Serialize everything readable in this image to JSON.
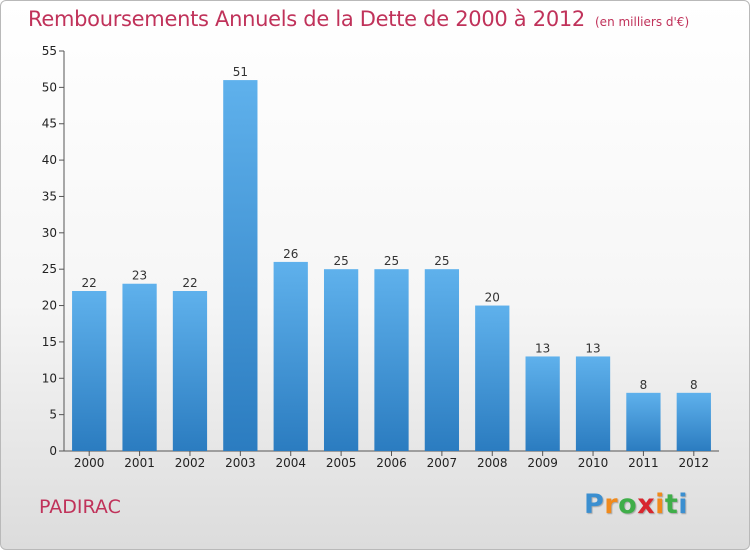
{
  "chart_data": {
    "type": "bar",
    "title": "Remboursements Annuels de la Dette de 2000 à 2012",
    "unit": "(en milliers d'€)",
    "categories": [
      "2000",
      "2001",
      "2002",
      "2003",
      "2004",
      "2005",
      "2006",
      "2007",
      "2008",
      "2009",
      "2010",
      "2011",
      "2012"
    ],
    "values": [
      22,
      23,
      22,
      51,
      26,
      25,
      25,
      25,
      20,
      13,
      13,
      8,
      8
    ],
    "ylim": [
      0,
      55
    ],
    "yticks": [
      0,
      5,
      10,
      15,
      20,
      25,
      30,
      35,
      40,
      45,
      50,
      55
    ],
    "grid": false,
    "bar_color": "#4a9fe0"
  },
  "footer": {
    "commune": "PADIRAC",
    "logo_letters": [
      "P",
      "r",
      "o",
      "x",
      "i",
      "t",
      "i"
    ],
    "logo_colors": [
      "#3b8fd0",
      "#f08a1c",
      "#3fae49",
      "#d8262e",
      "#f08a1c",
      "#3fae49",
      "#3b8fd0"
    ]
  }
}
